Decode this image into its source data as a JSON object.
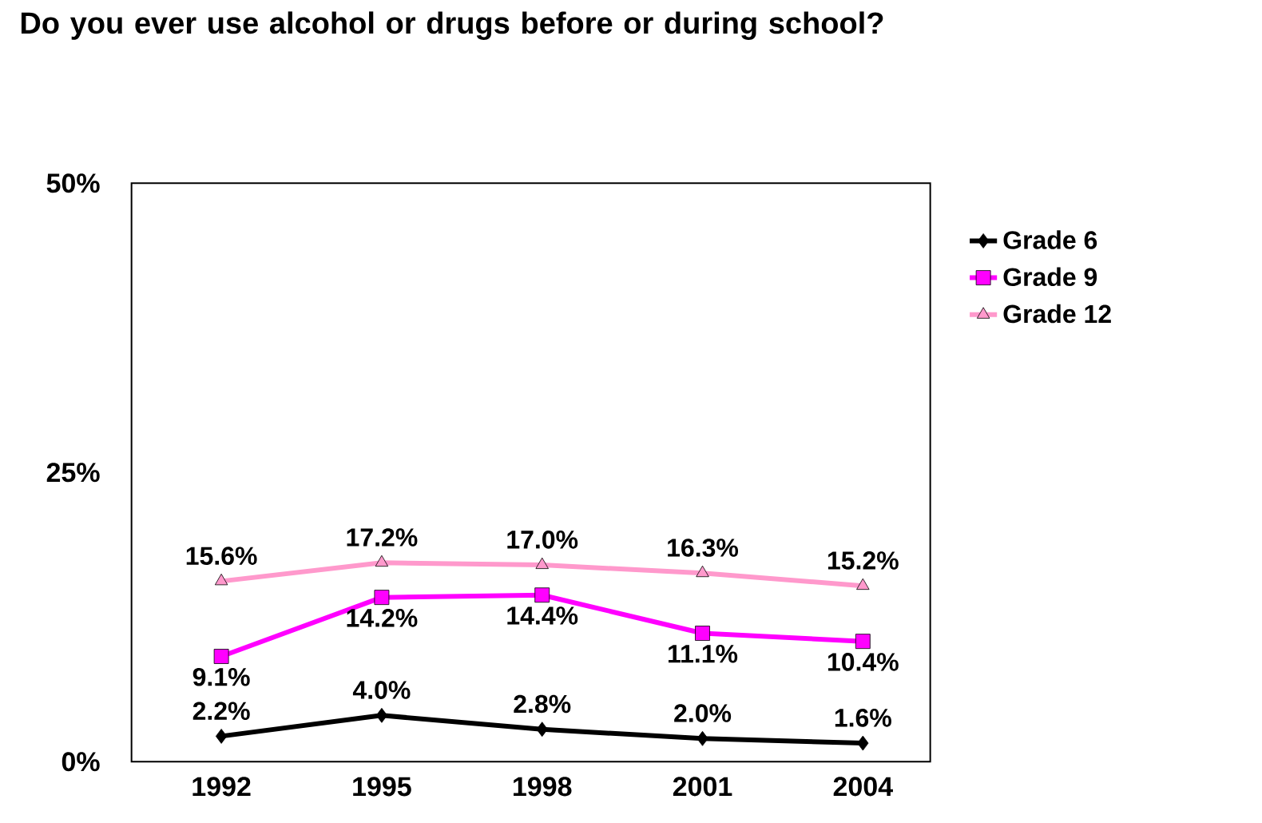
{
  "chart_data": {
    "type": "line",
    "title": "Do you ever use alcohol or drugs before or during school?",
    "categories": [
      "1992",
      "1995",
      "1998",
      "2001",
      "2004"
    ],
    "ylim": [
      0,
      50
    ],
    "yticks": [
      {
        "value": 0,
        "label": "0%"
      },
      {
        "value": 25,
        "label": "25%"
      },
      {
        "value": 50,
        "label": "50%"
      }
    ],
    "grid": false,
    "legend": "right",
    "line_style": "solid",
    "series": [
      {
        "name": "Grade 6",
        "color": "#000000",
        "marker": "diamond",
        "values": [
          2.2,
          4.0,
          2.8,
          2.0,
          1.6
        ],
        "value_labels": [
          "2.2%",
          "4.0%",
          "2.8%",
          "2.0%",
          "1.6%"
        ]
      },
      {
        "name": "Grade 9",
        "color": "#ff00ff",
        "marker": "square",
        "values": [
          9.1,
          14.2,
          14.4,
          11.1,
          10.4
        ],
        "value_labels": [
          "9.1%",
          "14.2%",
          "14.4%",
          "11.1%",
          "10.4%"
        ]
      },
      {
        "name": "Grade 12",
        "color": "#ff99cc",
        "marker": "triangle",
        "values": [
          15.6,
          17.2,
          17.0,
          16.3,
          15.2
        ],
        "value_labels": [
          "15.6%",
          "17.2%",
          "17.0%",
          "16.3%",
          "15.2%"
        ]
      }
    ]
  }
}
